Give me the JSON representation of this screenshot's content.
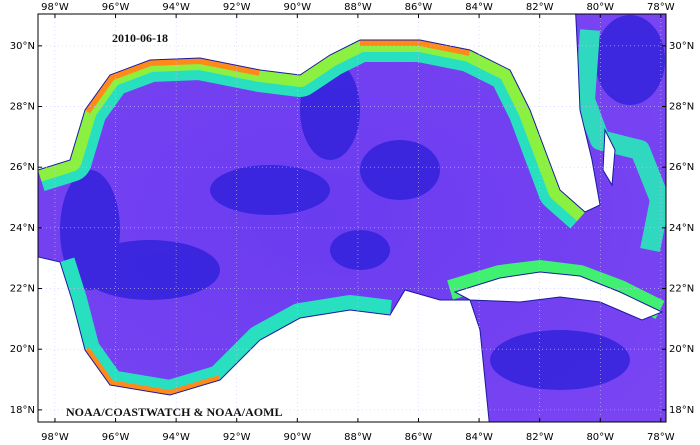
{
  "map": {
    "date": "2010-06-18",
    "credit": "NOAA/COASTWATCH & NOAA/AOML",
    "xlim": [
      -98.56,
      -77.83
    ],
    "ylim": [
      17.6,
      31.05
    ],
    "xticks": [
      {
        "value": -98,
        "label": "98°W"
      },
      {
        "value": -96,
        "label": "96°W"
      },
      {
        "value": -94,
        "label": "94°W"
      },
      {
        "value": -92,
        "label": "92°W"
      },
      {
        "value": -90,
        "label": "90°W"
      },
      {
        "value": -88,
        "label": "88°W"
      },
      {
        "value": -86,
        "label": "86°W"
      },
      {
        "value": -84,
        "label": "84°W"
      },
      {
        "value": -82,
        "label": "82°W"
      },
      {
        "value": -80,
        "label": "80°W"
      },
      {
        "value": -78,
        "label": "78°W"
      }
    ],
    "yticks": [
      {
        "value": 18,
        "label": "18°N"
      },
      {
        "value": 20,
        "label": "20°N"
      },
      {
        "value": 22,
        "label": "22°N"
      },
      {
        "value": 24,
        "label": "24°N"
      },
      {
        "value": 26,
        "label": "26°N"
      },
      {
        "value": 28,
        "label": "28°N"
      },
      {
        "value": 30,
        "label": "30°N"
      }
    ]
  }
}
